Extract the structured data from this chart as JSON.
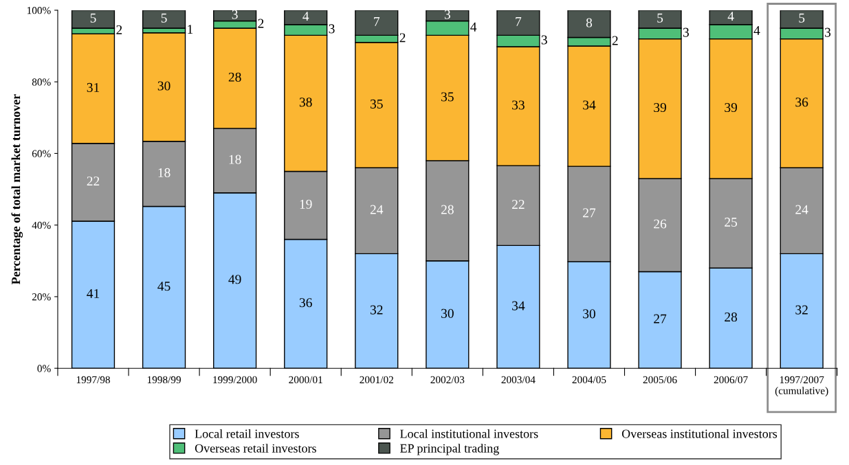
{
  "chart_data": {
    "type": "bar",
    "stacked": true,
    "ylabel": "Percentage of total market turnover",
    "categories": [
      "1997/98",
      "1998/99",
      "1999/2000",
      "2000/01",
      "2001/02",
      "2002/03",
      "2003/04",
      "2004/05",
      "2005/06",
      "2006/07",
      "1997/2007\n(cumulative)"
    ],
    "ylim": [
      0,
      100
    ],
    "yticks": [
      {
        "value": 0,
        "label": "0%"
      },
      {
        "value": 20,
        "label": "20%"
      },
      {
        "value": 40,
        "label": "40%"
      },
      {
        "value": 60,
        "label": "60%"
      },
      {
        "value": 80,
        "label": "80%"
      },
      {
        "value": 100,
        "label": "100%"
      }
    ],
    "grid": false,
    "legend": "bottom",
    "series": [
      {
        "name": "Local retail investors",
        "color": "#99ccff",
        "values": [
          41.1,
          45.2,
          49,
          36,
          32,
          30,
          34.3,
          29.8,
          27,
          28,
          32
        ],
        "value_labels": [
          "41",
          "45",
          "49",
          "36",
          "32",
          "30",
          "34",
          "30",
          "27",
          "28",
          "32"
        ]
      },
      {
        "name": "Local institutional investors",
        "color": "#969696",
        "values": [
          21.7,
          18.2,
          18,
          19,
          24,
          28,
          22.3,
          26.6,
          26,
          25,
          24
        ],
        "value_labels": [
          "22",
          "18",
          "18",
          "19",
          "24",
          "28",
          "22",
          "27",
          "26",
          "25",
          "24"
        ]
      },
      {
        "name": "Overseas institutional investors",
        "color": "#fbb632",
        "values": [
          30.6,
          30.3,
          28,
          38,
          35,
          35,
          33.2,
          33.6,
          39,
          39,
          36
        ],
        "value_labels": [
          "31",
          "30",
          "28",
          "38",
          "35",
          "35",
          "33",
          "34",
          "39",
          "39",
          "36"
        ]
      },
      {
        "name": "Overseas retail investors",
        "color": "#4fbf78",
        "values": [
          1.6,
          1.3,
          2,
          3,
          2,
          4,
          3.2,
          2.4,
          3,
          4,
          3
        ],
        "value_labels": [
          "2",
          "1",
          "2",
          "3",
          "2",
          "4",
          "3",
          "2",
          "3",
          "4",
          "3"
        ]
      },
      {
        "name": "EP principal trading",
        "color": "#4b554f",
        "values": [
          5.0,
          5.0,
          3,
          4,
          7,
          3,
          7.0,
          7.6,
          5,
          4,
          5
        ],
        "value_labels": [
          "5",
          "5",
          "3",
          "4",
          "7",
          "3",
          "7",
          "8",
          "5",
          "4",
          "5"
        ]
      }
    ]
  }
}
